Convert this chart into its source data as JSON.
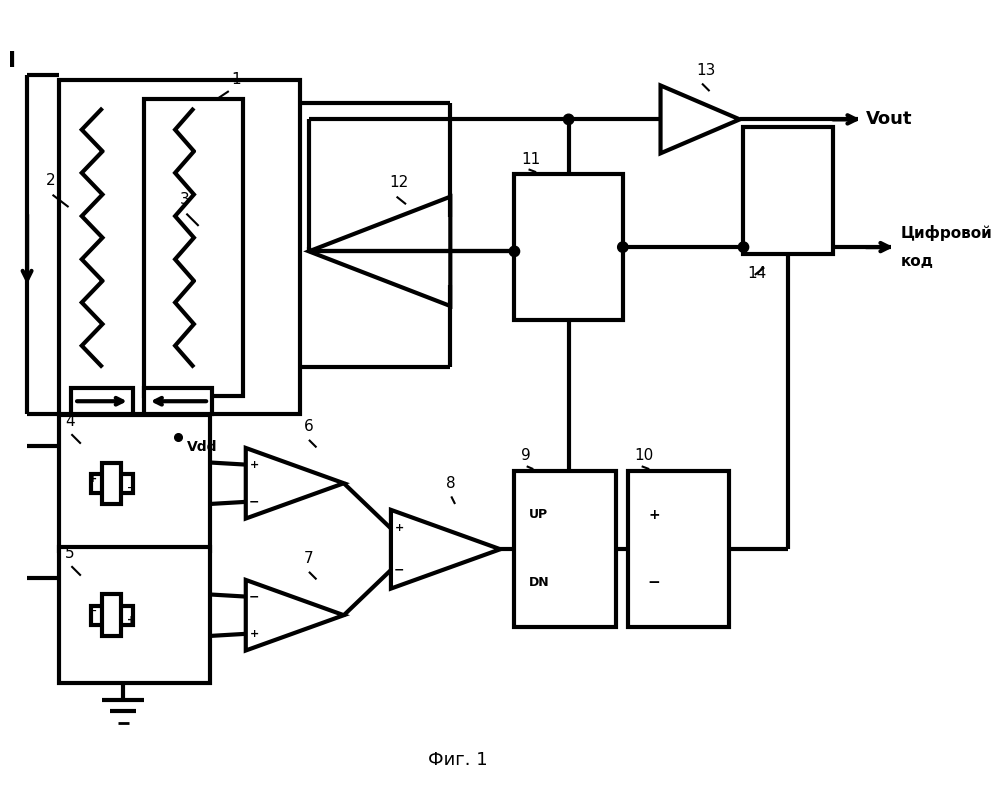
{
  "bg_color": "#ffffff",
  "line_color": "#000000",
  "lw": 2.0,
  "blw": 3.0,
  "fig_width": 9.99,
  "fig_height": 8.1,
  "caption": "Фиг. 1",
  "vout_label": "Vout",
  "digit_label1": "Цифровой",
  "digit_label2": "код",
  "vdd_label": "Vdd",
  "I_label": "I",
  "UP_label": "UP",
  "DN_label": "DN"
}
